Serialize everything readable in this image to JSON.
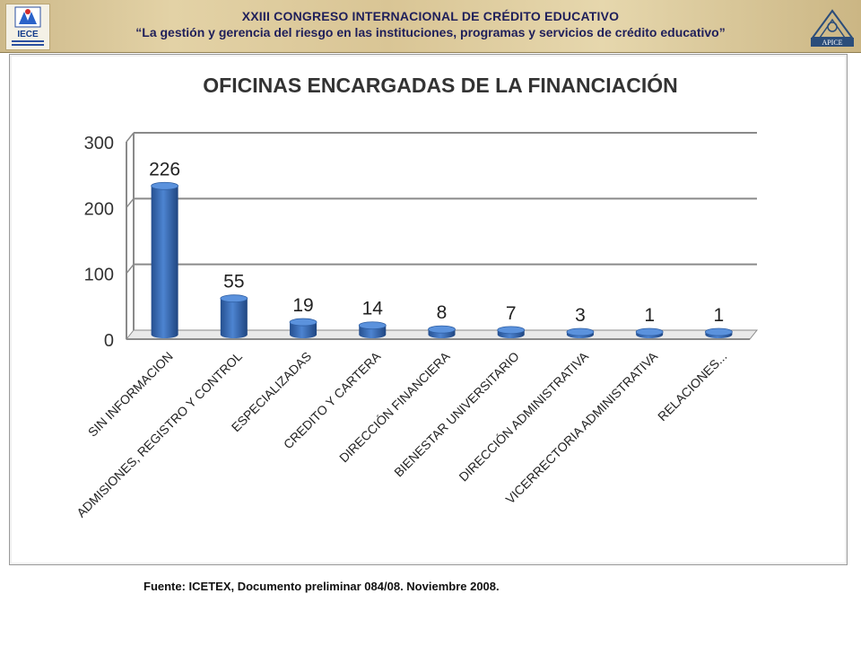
{
  "header": {
    "line1": "XXIII CONGRESO INTERNACIONAL DE CRÉDITO EDUCATIVO",
    "line2": "“La gestión y gerencia del riesgo en las instituciones, programas y servicios de crédito educativo”",
    "logo_left_text": "IECE",
    "logo_right_text": "APICE"
  },
  "chart_data": {
    "type": "bar",
    "title": "OFICINAS ENCARGADAS DE LA FINANCIACIÓN",
    "categories": [
      "SIN INFORMACION",
      "ADMISIONES, REGISTRO Y CONTROL",
      "ESPECIALIZADAS",
      "CREDITO Y CARTERA",
      "DIRECCIÓN FINANCIERA",
      "BIENESTAR UNIVERSITARIO",
      "DIRECCIÓN ADMINISTRATIVA",
      "VICERRECTORIA ADMINISTRATIVA",
      "RELACIONES..."
    ],
    "values": [
      226,
      55,
      19,
      14,
      8,
      7,
      3,
      1,
      1
    ],
    "data_labels": [
      "226",
      "55",
      "19",
      "14",
      "8",
      "7",
      "3",
      "1",
      "1"
    ],
    "y_ticks": [
      "0",
      "100",
      "200",
      "300"
    ],
    "ylim": [
      0,
      300
    ],
    "grid": true,
    "bar_color": "#3a6fb5"
  },
  "footer": {
    "source": "Fuente: ICETEX, Documento preliminar 084/08. Noviembre 2008."
  }
}
